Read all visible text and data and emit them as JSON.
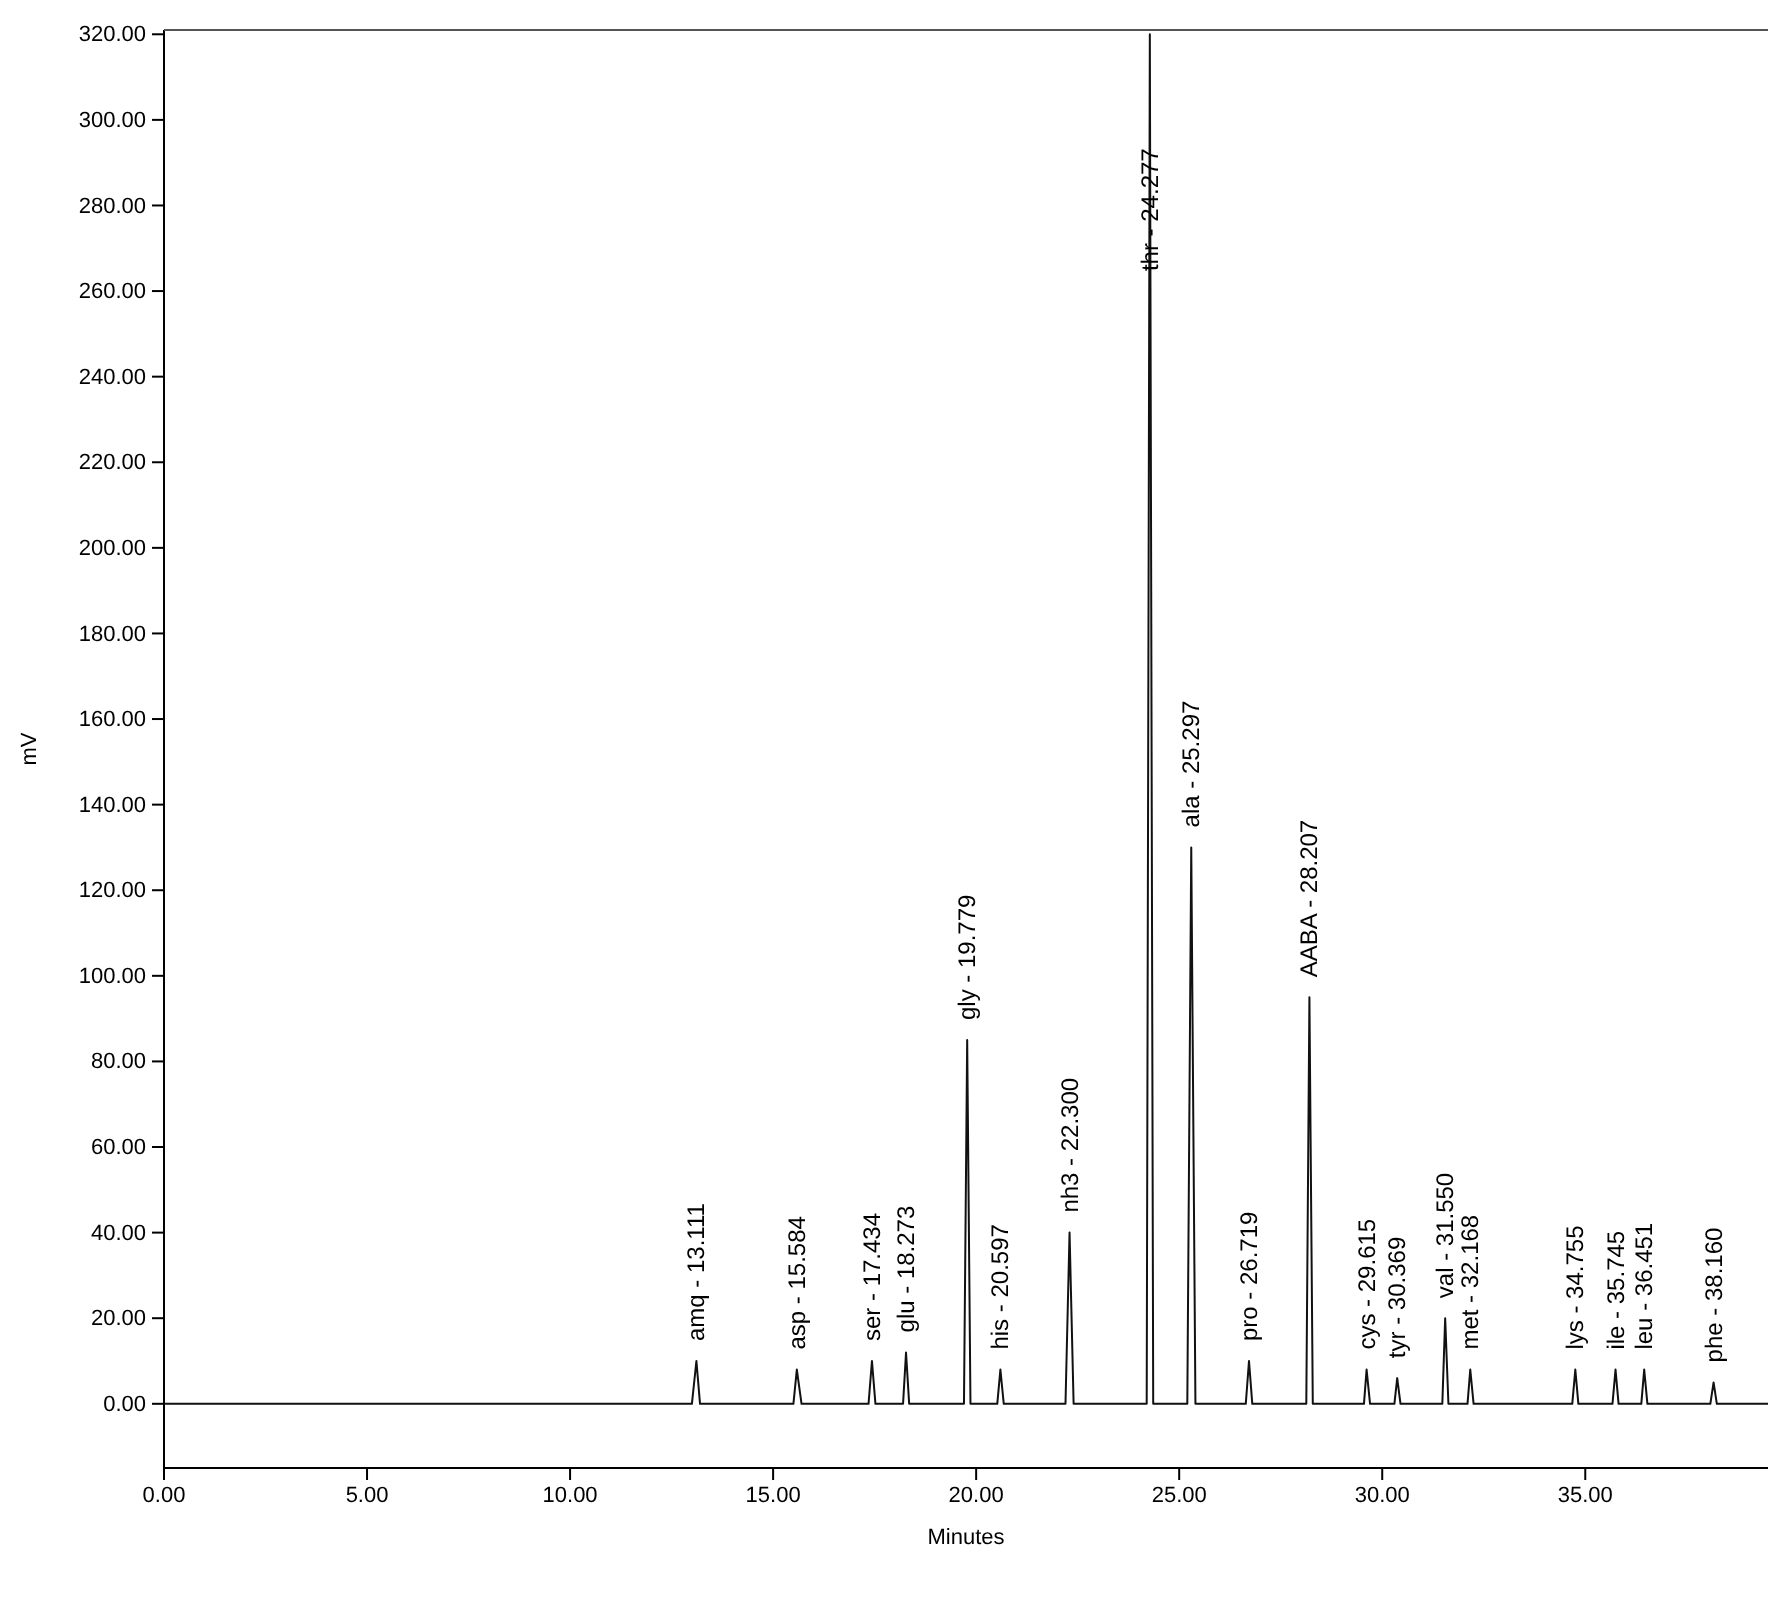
{
  "chart_data": {
    "type": "line",
    "xlabel": "Minutes",
    "ylabel": "mV",
    "xlim": [
      0,
      39.5
    ],
    "ylim": [
      -15,
      321
    ],
    "xticks": [
      {
        "value": 0,
        "label": "0.00"
      },
      {
        "value": 5,
        "label": "5.00"
      },
      {
        "value": 10,
        "label": "10.00"
      },
      {
        "value": 15,
        "label": "15.00"
      },
      {
        "value": 20,
        "label": "20.00"
      },
      {
        "value": 25,
        "label": "25.00"
      },
      {
        "value": 30,
        "label": "30.00"
      },
      {
        "value": 35,
        "label": "35.00"
      }
    ],
    "yticks": [
      {
        "value": 0,
        "label": "0.00"
      },
      {
        "value": 20,
        "label": "20.00"
      },
      {
        "value": 40,
        "label": "40.00"
      },
      {
        "value": 60,
        "label": "60.00"
      },
      {
        "value": 80,
        "label": "80.00"
      },
      {
        "value": 100,
        "label": "100.00"
      },
      {
        "value": 120,
        "label": "120.00"
      },
      {
        "value": 140,
        "label": "140.00"
      },
      {
        "value": 160,
        "label": "160.00"
      },
      {
        "value": 180,
        "label": "180.00"
      },
      {
        "value": 200,
        "label": "200.00"
      },
      {
        "value": 220,
        "label": "220.00"
      },
      {
        "value": 240,
        "label": "240.00"
      },
      {
        "value": 260,
        "label": "260.00"
      },
      {
        "value": 280,
        "label": "280.00"
      },
      {
        "value": 300,
        "label": "300.00"
      },
      {
        "value": 320,
        "label": "320.00"
      }
    ],
    "series": [
      {
        "color": "#111111",
        "x": [
          0,
          13.0,
          13.111,
          13.2,
          15.5,
          15.584,
          15.7,
          17.35,
          17.434,
          17.52,
          18.2,
          18.273,
          18.35,
          19.7,
          19.779,
          19.86,
          20.52,
          20.597,
          20.68,
          22.2,
          22.3,
          22.4,
          24.2,
          24.277,
          24.36,
          25.2,
          25.297,
          25.4,
          26.64,
          26.719,
          26.8,
          28.13,
          28.207,
          28.29,
          29.55,
          29.615,
          29.7,
          30.3,
          30.369,
          30.45,
          31.48,
          31.55,
          31.63,
          32.1,
          32.168,
          32.25,
          34.68,
          34.755,
          34.83,
          35.67,
          35.745,
          35.82,
          36.38,
          36.451,
          36.53,
          38.08,
          38.16,
          38.24,
          39.5
        ],
        "values": [
          0,
          0,
          10,
          0,
          0,
          8,
          0,
          0,
          10,
          0,
          0,
          12,
          0,
          0,
          85,
          0,
          0,
          8,
          0,
          0,
          40,
          0,
          0,
          320,
          0,
          0,
          130,
          0,
          0,
          10,
          0,
          0,
          95,
          0,
          0,
          8,
          0,
          0,
          6,
          0,
          0,
          20,
          0,
          0,
          8,
          0,
          0,
          8,
          0,
          0,
          8,
          0,
          0,
          8,
          0,
          0,
          5,
          0,
          0
        ]
      }
    ],
    "annotations": [
      {
        "text": "amq - 13.111",
        "x": 13.111,
        "y": 10
      },
      {
        "text": "asp - 15.584",
        "x": 15.584,
        "y": 8
      },
      {
        "text": "ser - 17.434",
        "x": 17.434,
        "y": 10
      },
      {
        "text": "glu - 18.273",
        "x": 18.273,
        "y": 12
      },
      {
        "text": "gly - 19.779",
        "x": 19.779,
        "y": 85
      },
      {
        "text": "his - 20.597",
        "x": 20.597,
        "y": 8
      },
      {
        "text": "nh3 - 22.300",
        "x": 22.3,
        "y": 40
      },
      {
        "text": "thr - 24.277",
        "x": 24.277,
        "y": 260
      },
      {
        "text": "ala - 25.297",
        "x": 25.297,
        "y": 130
      },
      {
        "text": "pro - 26.719",
        "x": 26.719,
        "y": 10
      },
      {
        "text": "AABA - 28.207",
        "x": 28.207,
        "y": 95
      },
      {
        "text": "cys - 29.615",
        "x": 29.615,
        "y": 8
      },
      {
        "text": "tyr - 30.369",
        "x": 30.369,
        "y": 6
      },
      {
        "text": "val - 31.550",
        "x": 31.55,
        "y": 20
      },
      {
        "text": "met - 32.168",
        "x": 32.168,
        "y": 8
      },
      {
        "text": "lys - 34.755",
        "x": 34.755,
        "y": 8
      },
      {
        "text": "ile - 35.745",
        "x": 35.745,
        "y": 8
      },
      {
        "text": "leu - 36.451",
        "x": 36.451,
        "y": 8
      },
      {
        "text": "phe - 38.160",
        "x": 38.16,
        "y": 5
      }
    ]
  }
}
